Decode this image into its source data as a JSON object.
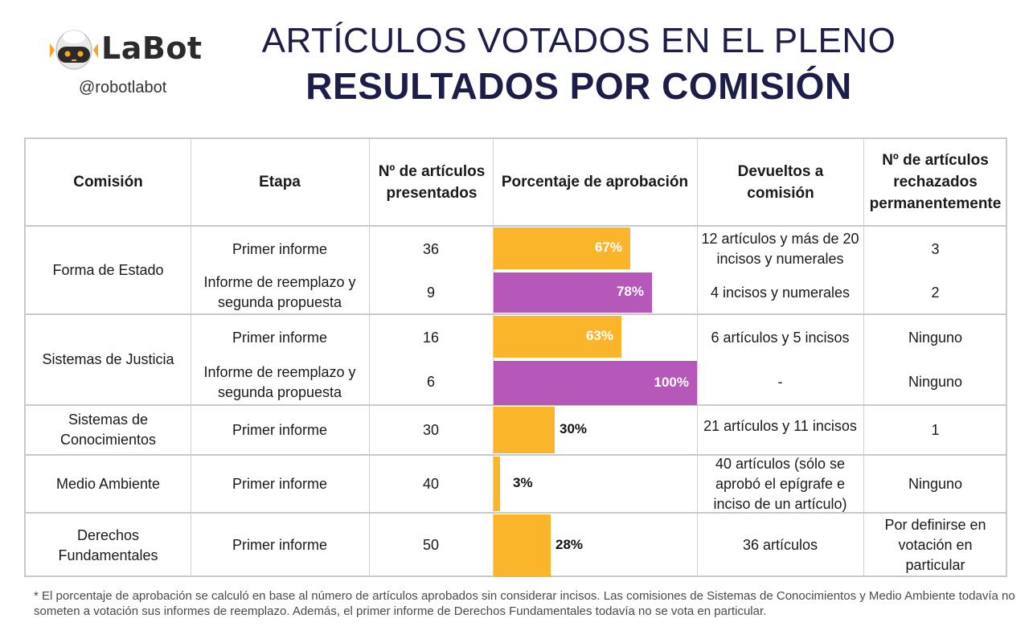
{
  "logo": {
    "name": "LaBot",
    "handle": "@robotlabot"
  },
  "title_line1": "ARTÍCULOS VOTADOS EN EL PLENO",
  "title_line2": "RESULTADOS POR COMISIÓN",
  "headers": {
    "comision": "Comisión",
    "etapa": "Etapa",
    "presentados": "Nº de artículos presentados",
    "aprobacion": "Porcentaje de aprobación",
    "devueltos": "Devueltos a comisión",
    "rechazados": "Nº de artículos rechazados permanentemente"
  },
  "commissions": [
    "Forma de Estado",
    "Sistemas de Justicia",
    "Sistemas de Conocimientos",
    "Medio Ambiente",
    "Derechos Fundamentales"
  ],
  "rows": [
    {
      "etapa": "Primer informe",
      "presentados": "36",
      "pct_label": "67%",
      "devueltos": "12 artículos y más de 20 incisos y numerales",
      "rechazados": "3"
    },
    {
      "etapa": "Informe de reemplazo y segunda propuesta",
      "presentados": "9",
      "pct_label": "78%",
      "devueltos": "4 incisos y numerales",
      "rechazados": "2"
    },
    {
      "etapa": "Primer informe",
      "presentados": "16",
      "pct_label": "63%",
      "devueltos": "6 artículos y 5 incisos",
      "rechazados": "Ninguno"
    },
    {
      "etapa": "Informe de reemplazo y segunda propuesta",
      "presentados": "6",
      "pct_label": "100%",
      "devueltos": "-",
      "rechazados": "Ninguno"
    },
    {
      "etapa": "Primer informe",
      "presentados": "30",
      "pct_label": "30%",
      "devueltos": "21 artículos y 11 incisos",
      "rechazados": "1"
    },
    {
      "etapa": "Primer informe",
      "presentados": "40",
      "pct_label": "3%",
      "devueltos": "40 artículos (sólo se aprobó el epígrafe e inciso de un artículo)",
      "rechazados": "Ninguno"
    },
    {
      "etapa": "Primer informe",
      "presentados": "50",
      "pct_label": "28%",
      "devueltos": "36 artículos",
      "rechazados": "Por definirse en votación en particular"
    }
  ],
  "chart_data": {
    "type": "bar",
    "categories": [
      "Forma de Estado - Primer informe",
      "Forma de Estado - Informe de reemplazo y segunda propuesta",
      "Sistemas de Justicia - Primer informe",
      "Sistemas de Justicia - Informe de reemplazo y segunda propuesta",
      "Sistemas de Conocimientos - Primer informe",
      "Medio Ambiente - Primer informe",
      "Derechos Fundamentales - Primer informe"
    ],
    "values": [
      67,
      78,
      63,
      100,
      30,
      3,
      28
    ],
    "bar_colors": [
      "#fbb52a",
      "#b558b9",
      "#fbb52a",
      "#b558b9",
      "#fbb52a",
      "#fbb52a",
      "#fbb52a"
    ],
    "title": "Porcentaje de aprobación",
    "xlabel": "",
    "ylabel": "",
    "ylim": [
      0,
      100
    ],
    "grid": false
  },
  "footnote": "* El porcentaje de aprobación se calculó en base al número de artículos aprobados sin considerar incisos. Las comisiones de Sistemas de Conocimientos y Medio Ambiente todavía no someten a votación sus informes de reemplazo. Además, el primer informe de Derechos Fundamentales todavía no se vota en particular."
}
